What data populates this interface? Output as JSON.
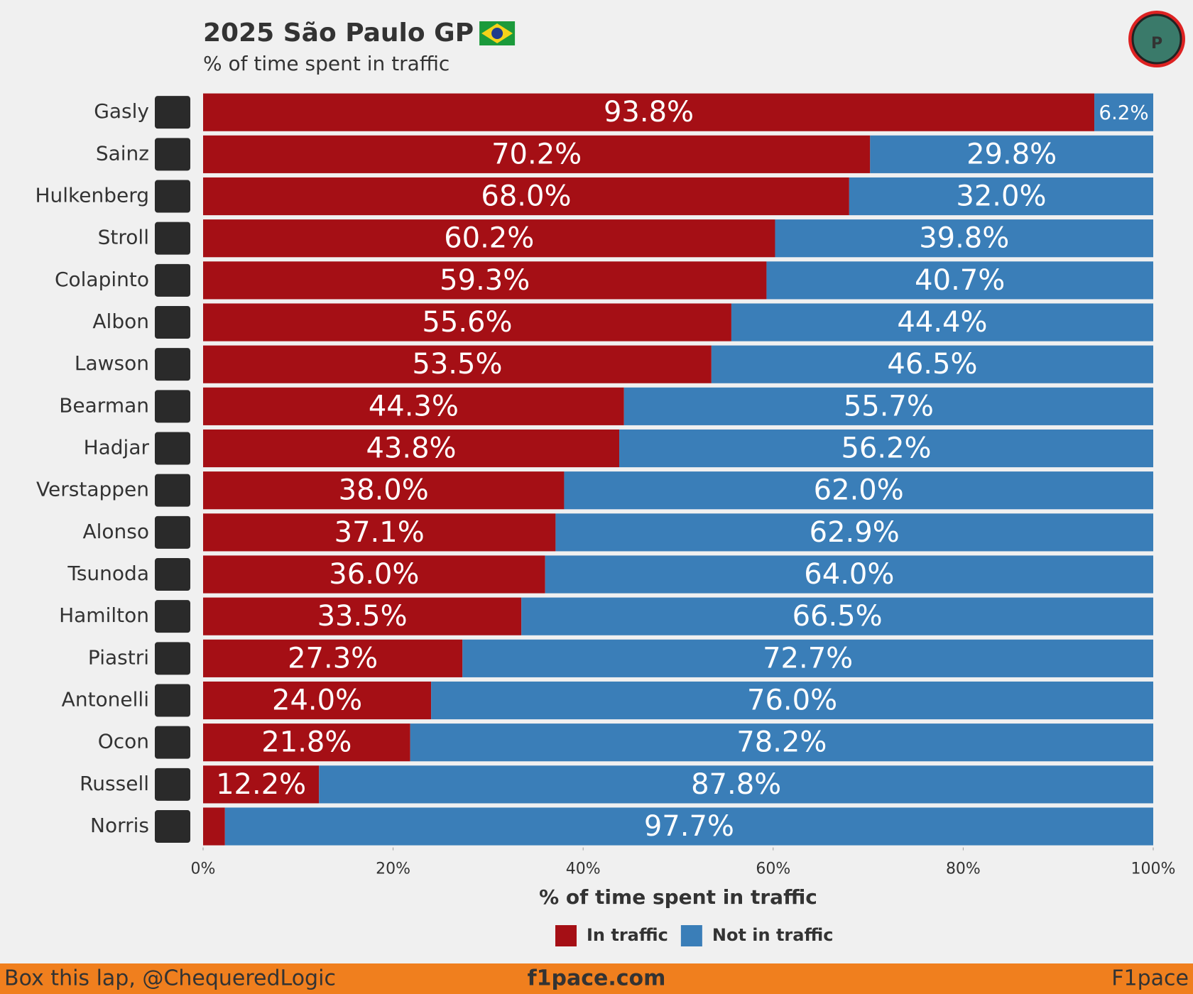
{
  "chart_data": {
    "type": "stacked-barh",
    "title": "2025 São Paulo GP",
    "subtitle": "% of time spent in traffic",
    "x_label": "% of time spent in traffic",
    "categories": [
      "Gasly",
      "Sainz",
      "Hulkenberg",
      "Stroll",
      "Colapinto",
      "Albon",
      "Lawson",
      "Bearman",
      "Hadjar",
      "Verstappen",
      "Alonso",
      "Tsunoda",
      "Hamilton",
      "Piastri",
      "Antonelli",
      "Ocon",
      "Russell",
      "Norris"
    ],
    "series": [
      {
        "name": "In traffic",
        "color": "#a50f15",
        "values": [
          93.8,
          70.2,
          68.0,
          60.2,
          59.3,
          55.6,
          53.5,
          44.3,
          43.8,
          38.0,
          37.1,
          36.0,
          33.5,
          27.3,
          24.0,
          21.8,
          12.2,
          2.3
        ],
        "value_labels": [
          "93.8%",
          "70.2%",
          "68.0%",
          "60.2%",
          "59.3%",
          "55.6%",
          "53.5%",
          "44.3%",
          "43.8%",
          "38.0%",
          "37.1%",
          "36.0%",
          "33.5%",
          "27.3%",
          "24.0%",
          "21.8%",
          "12.2%",
          null
        ]
      },
      {
        "name": "Not in traffic",
        "color": "#3a7eb8",
        "values": [
          6.2,
          29.8,
          32.0,
          39.8,
          40.7,
          44.4,
          46.5,
          55.7,
          56.2,
          62.0,
          62.9,
          64.0,
          66.5,
          72.7,
          76.0,
          78.2,
          87.8,
          97.7
        ],
        "value_labels": [
          "6.2%",
          "29.8%",
          "32.0%",
          "39.8%",
          "40.7%",
          "44.4%",
          "46.5%",
          "55.7%",
          "56.2%",
          "62.0%",
          "62.9%",
          "64.0%",
          "66.5%",
          "72.7%",
          "76.0%",
          "78.2%",
          "87.8%",
          "97.7%"
        ]
      }
    ],
    "xlim": [
      0,
      100
    ],
    "xticks": [
      {
        "value": 0,
        "label": "0%"
      },
      {
        "value": 20,
        "label": "20%"
      },
      {
        "value": 40,
        "label": "40%"
      },
      {
        "value": 60,
        "label": "60%"
      },
      {
        "value": 80,
        "label": "80%"
      },
      {
        "value": 100,
        "label": "100%"
      }
    ],
    "footer": {
      "left": "Box this lap, @ChequeredLogic",
      "center": "f1pace.com",
      "right": "F1pace"
    }
  }
}
